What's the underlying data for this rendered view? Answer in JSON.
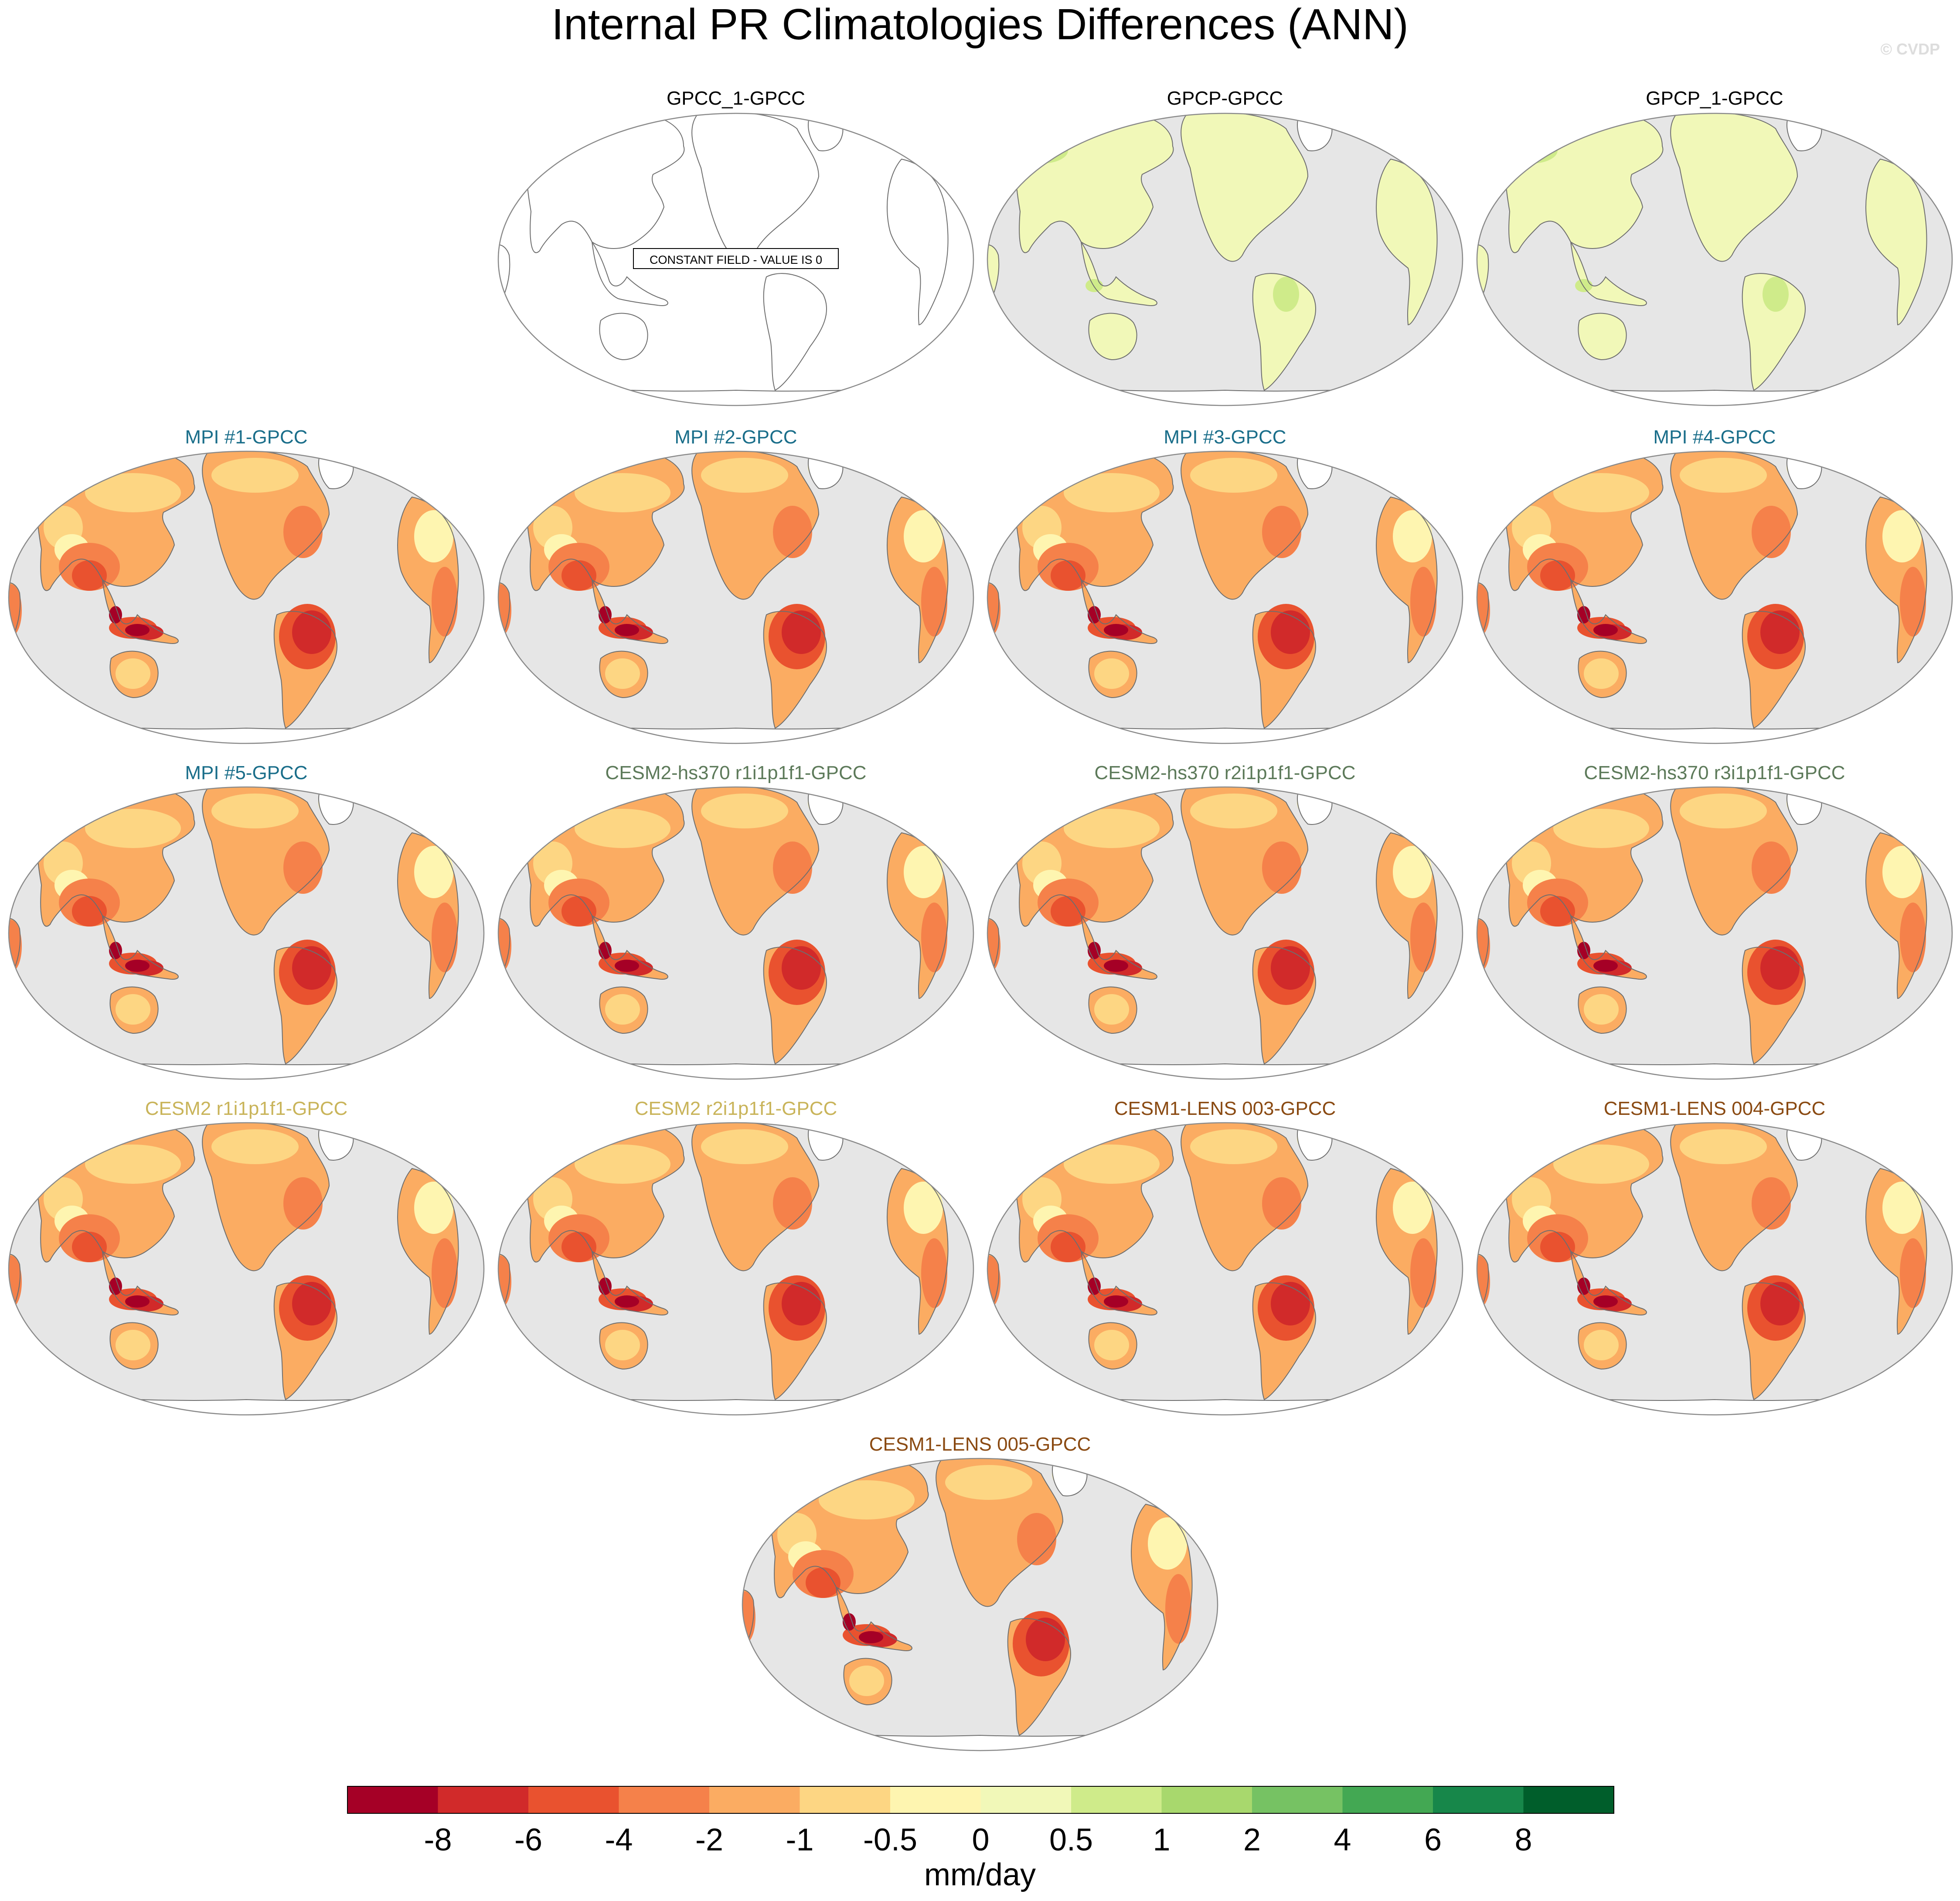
{
  "title": "Internal PR Climatologies Differences (ANN)",
  "watermark": "© CVDP",
  "constant_label": "CONSTANT FIELD - VALUE IS 0",
  "colors": {
    "ocean": "#e6e6e6",
    "coast": "#6e6e6e",
    "obs_title": "#000000",
    "mpi_title": "#1a6e8a",
    "cesm2hs_title": "#5d7a5a",
    "cesm2_title": "#c9b45a",
    "cesm1_title": "#8a4a12"
  },
  "panels": [
    {
      "label": "GPCC_1-GPCC",
      "group": "obs",
      "fill": "constant"
    },
    {
      "label": "GPCP-GPCC",
      "group": "obs",
      "fill": "wet"
    },
    {
      "label": "GPCP_1-GPCC",
      "group": "obs",
      "fill": "wet"
    },
    {
      "label": "MPI #1-GPCC",
      "group": "mpi",
      "fill": "dry"
    },
    {
      "label": "MPI #2-GPCC",
      "group": "mpi",
      "fill": "dry"
    },
    {
      "label": "MPI #3-GPCC",
      "group": "mpi",
      "fill": "dry"
    },
    {
      "label": "MPI #4-GPCC",
      "group": "mpi",
      "fill": "dry"
    },
    {
      "label": "MPI #5-GPCC",
      "group": "mpi",
      "fill": "dry"
    },
    {
      "label": "CESM2-hs370 r1i1p1f1-GPCC",
      "group": "cesm2hs",
      "fill": "dry"
    },
    {
      "label": "CESM2-hs370 r2i1p1f1-GPCC",
      "group": "cesm2hs",
      "fill": "dry"
    },
    {
      "label": "CESM2-hs370 r3i1p1f1-GPCC",
      "group": "cesm2hs",
      "fill": "dry"
    },
    {
      "label": "CESM2 r1i1p1f1-GPCC",
      "group": "cesm2",
      "fill": "dry"
    },
    {
      "label": "CESM2 r2i1p1f1-GPCC",
      "group": "cesm2",
      "fill": "dry"
    },
    {
      "label": "CESM1-LENS 003-GPCC",
      "group": "cesm1",
      "fill": "dry"
    },
    {
      "label": "CESM1-LENS 004-GPCC",
      "group": "cesm1",
      "fill": "dry"
    },
    {
      "label": "CESM1-LENS 005-GPCC",
      "group": "cesm1",
      "fill": "dry"
    }
  ],
  "colorbar": {
    "colors": [
      "#a50026",
      "#d12a2a",
      "#e9522f",
      "#f5814a",
      "#fbac62",
      "#fdd683",
      "#fef5b0",
      "#f1f8b8",
      "#cfeb8a",
      "#a8d86d",
      "#76c263",
      "#43a853",
      "#17874a",
      "#005e2b"
    ],
    "labels": [
      "-8",
      "-6",
      "-4",
      "-2",
      "-1",
      "-0.5",
      "0",
      "0.5",
      "1",
      "2",
      "4",
      "6",
      "8"
    ],
    "unit": "mm/day"
  }
}
